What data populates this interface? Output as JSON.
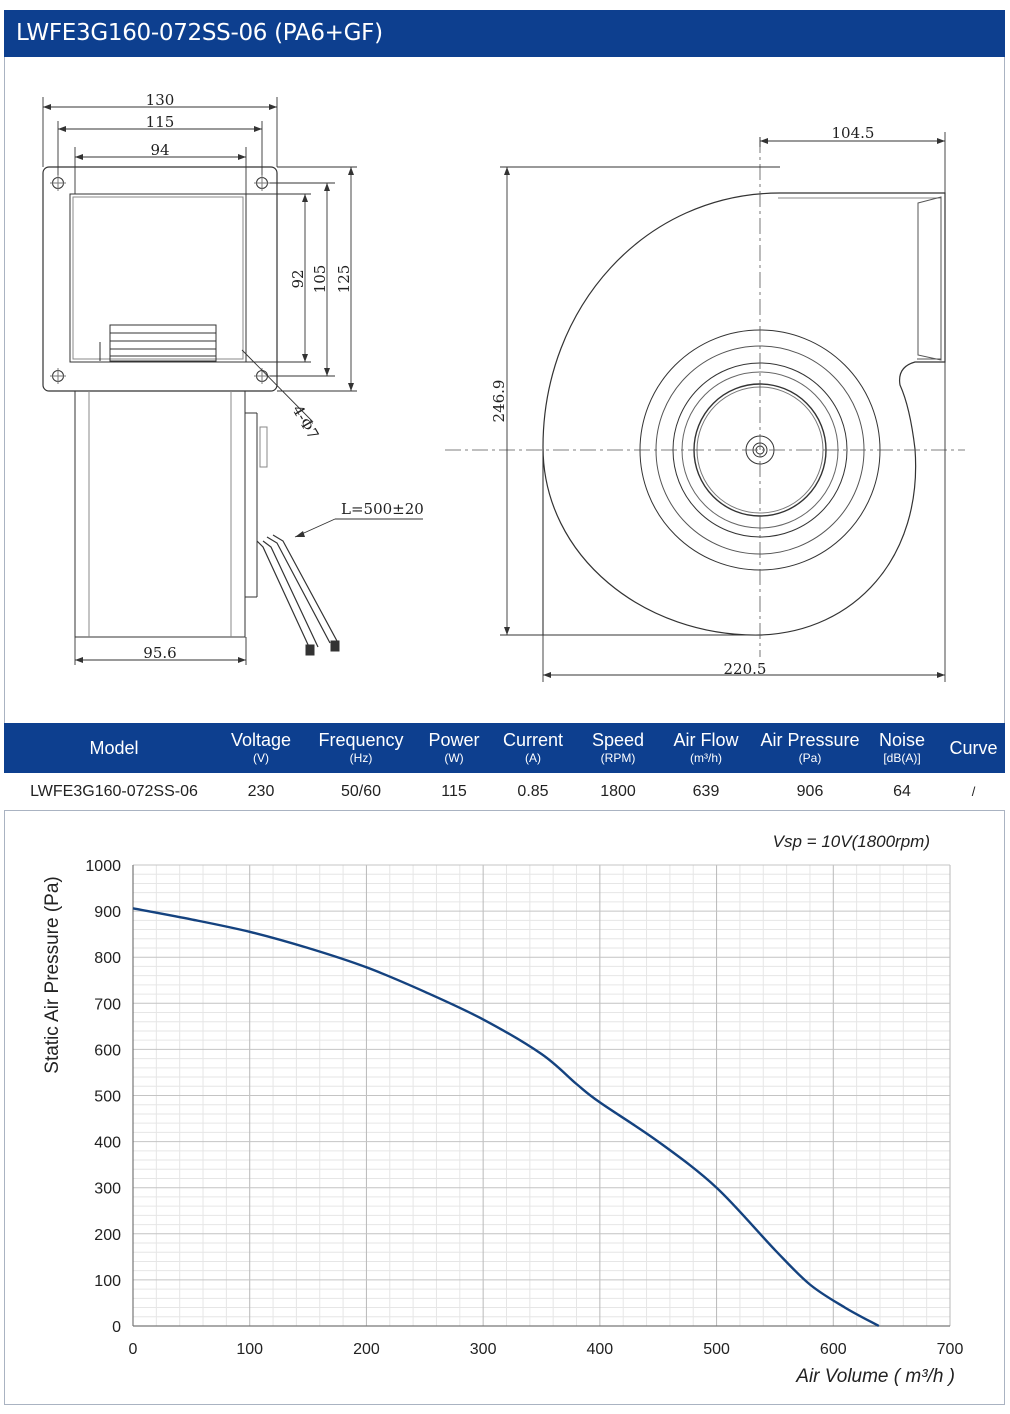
{
  "header": {
    "title": "LWFE3G160-072SS-06 (PA6+GF)"
  },
  "drawing": {
    "dims": {
      "w130": "130",
      "w115": "115",
      "w94": "94",
      "h92": "92",
      "h105": "105",
      "h125": "125",
      "holes": "4-Φ7",
      "cable": "L=500±20",
      "w95_6": "95.6",
      "w104_5": "104.5",
      "h246_9": "246.9",
      "w220_5": "220.5"
    }
  },
  "specs": {
    "columns": [
      {
        "label": "Model",
        "unit": ""
      },
      {
        "label": "Voltage",
        "unit": "(V)"
      },
      {
        "label": "Frequency",
        "unit": "(Hz)"
      },
      {
        "label": "Power",
        "unit": "(W)"
      },
      {
        "label": "Current",
        "unit": "(A)"
      },
      {
        "label": "Speed",
        "unit": "(RPM)"
      },
      {
        "label": "Air Flow",
        "unit": "(m³/h)"
      },
      {
        "label": "Air Pressure",
        "unit": "(Pa)"
      },
      {
        "label": "Noise",
        "unit": "[dB(A)]"
      },
      {
        "label": "Curve",
        "unit": ""
      }
    ],
    "row": [
      "LWFE3G160-072SS-06",
      "230",
      "50/60",
      "115",
      "0.85",
      "1800",
      "639",
      "906",
      "64",
      "/"
    ]
  },
  "chart_data": {
    "type": "line",
    "title": "",
    "annotation": "Vsp = 10V(1800rpm)",
    "xlabel": "Air Volume ( m³/h )",
    "ylabel": "Static Air Pressure  (Pa)",
    "xlim": [
      0,
      700
    ],
    "ylim": [
      0,
      1000
    ],
    "xticks": [
      0,
      100,
      200,
      300,
      400,
      500,
      600,
      700
    ],
    "yticks": [
      0,
      100,
      200,
      300,
      400,
      500,
      600,
      700,
      800,
      900,
      1000
    ],
    "grid": true,
    "line_color": "#14427f",
    "series": [
      {
        "x": [
          0,
          50,
          100,
          150,
          200,
          250,
          300,
          350,
          380,
          400,
          450,
          500,
          550,
          580,
          610,
          639
        ],
        "values": [
          906,
          882,
          855,
          820,
          778,
          725,
          665,
          590,
          525,
          485,
          400,
          300,
          165,
          90,
          40,
          0
        ]
      }
    ]
  }
}
